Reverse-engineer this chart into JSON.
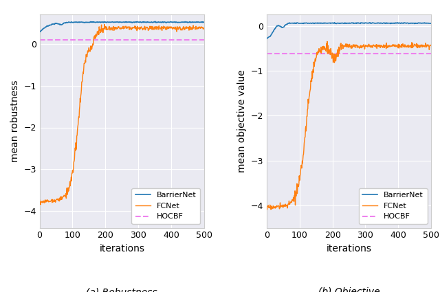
{
  "title_a": "(a) Robustness",
  "title_b": "(b) Objective",
  "xlabel": "iterations",
  "ylabel_a": "mean robustness",
  "ylabel_b": "mean objective value",
  "x_max": 500,
  "ylim_a": [
    -4.4,
    0.7
  ],
  "ylim_b": [
    -4.5,
    0.25
  ],
  "yticks_a": [
    -4,
    -3,
    -2,
    -1,
    0
  ],
  "yticks_b": [
    -4,
    -3,
    -2,
    -1,
    0
  ],
  "xticks": [
    0,
    100,
    200,
    300,
    400,
    500
  ],
  "hocbf_a": 0.1,
  "hocbf_b": -0.62,
  "color_barrier": "#1f77b4",
  "color_fcnet": "#ff7f0e",
  "color_hocbf": "#ee82ee",
  "legend_labels": [
    "BarrierNet",
    "FCNet",
    "HOCBF"
  ],
  "n_points": 500
}
